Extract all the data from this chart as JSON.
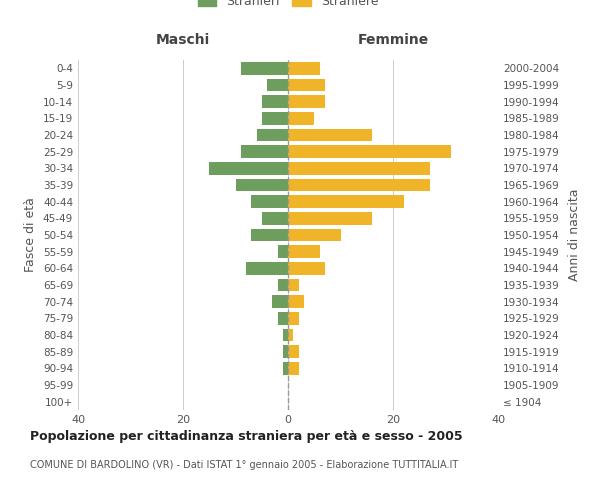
{
  "age_groups": [
    "100+",
    "95-99",
    "90-94",
    "85-89",
    "80-84",
    "75-79",
    "70-74",
    "65-69",
    "60-64",
    "55-59",
    "50-54",
    "45-49",
    "40-44",
    "35-39",
    "30-34",
    "25-29",
    "20-24",
    "15-19",
    "10-14",
    "5-9",
    "0-4"
  ],
  "birth_years": [
    "≤ 1904",
    "1905-1909",
    "1910-1914",
    "1915-1919",
    "1920-1924",
    "1925-1929",
    "1930-1934",
    "1935-1939",
    "1940-1944",
    "1945-1949",
    "1950-1954",
    "1955-1959",
    "1960-1964",
    "1965-1969",
    "1970-1974",
    "1975-1979",
    "1980-1984",
    "1985-1989",
    "1990-1994",
    "1995-1999",
    "2000-2004"
  ],
  "maschi": [
    0,
    0,
    1,
    1,
    1,
    2,
    3,
    2,
    8,
    2,
    7,
    5,
    7,
    10,
    15,
    9,
    6,
    5,
    5,
    4,
    9
  ],
  "femmine": [
    0,
    0,
    2,
    2,
    1,
    2,
    3,
    2,
    7,
    6,
    10,
    16,
    22,
    27,
    27,
    31,
    16,
    5,
    7,
    7,
    6
  ],
  "color_maschi": "#6e9e5e",
  "color_femmine": "#f0b429",
  "title": "Popolazione per cittadinanza straniera per età e sesso - 2005",
  "subtitle": "COMUNE DI BARDOLINO (VR) - Dati ISTAT 1° gennaio 2005 - Elaborazione TUTTITALIA.IT",
  "ylabel_left": "Fasce di età",
  "ylabel_right": "Anni di nascita",
  "xlabel_left": "Maschi",
  "xlabel_right": "Femmine",
  "legend_maschi": "Stranieri",
  "legend_femmine": "Straniere",
  "xlim": 40,
  "background_color": "#ffffff",
  "grid_color": "#cccccc",
  "tick_color": "#888888",
  "dashed_line_color": "#999999"
}
